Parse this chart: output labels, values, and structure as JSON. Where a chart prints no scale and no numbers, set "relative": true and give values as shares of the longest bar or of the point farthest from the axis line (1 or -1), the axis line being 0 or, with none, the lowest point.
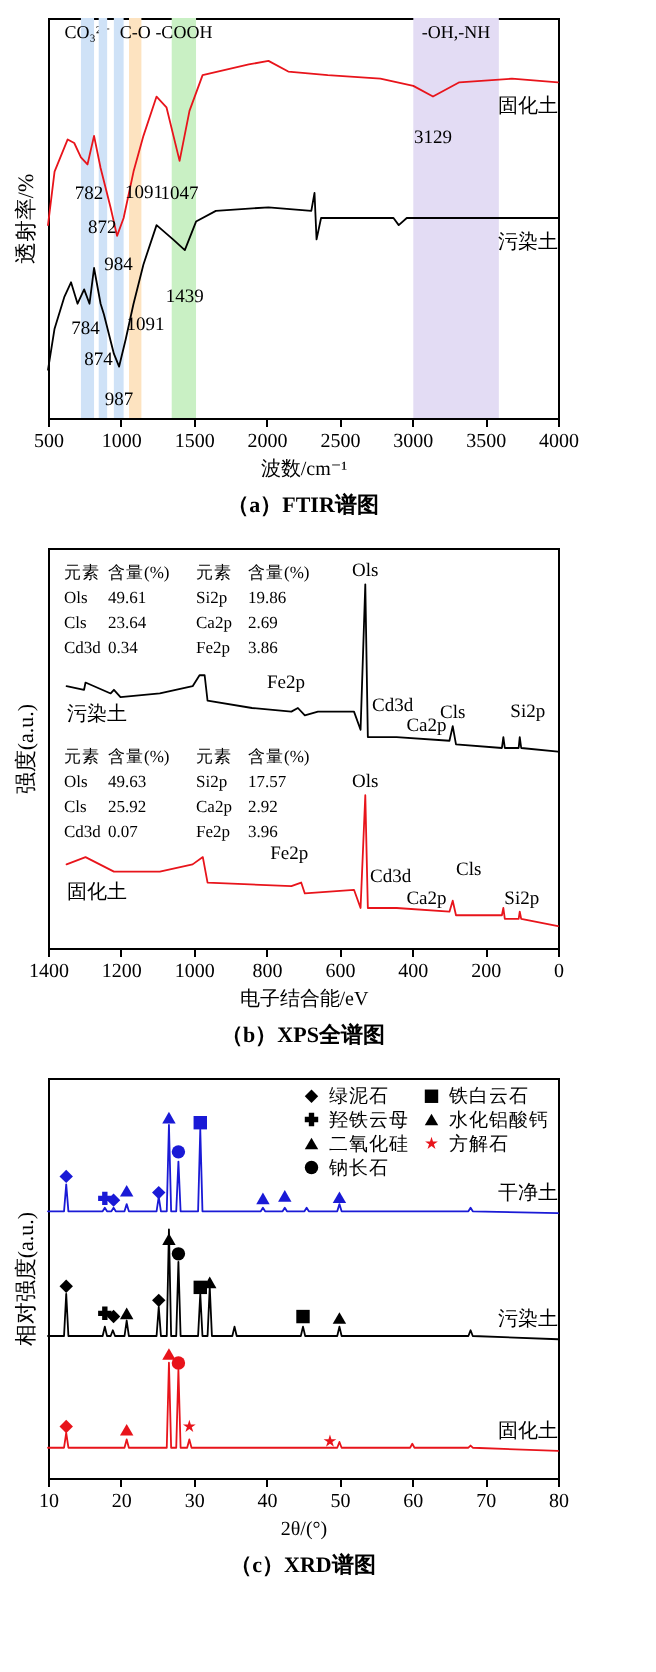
{
  "chart_data": [
    {
      "type": "line",
      "title": "（a）FTIR谱图",
      "xlabel": "波数/cm⁻¹",
      "ylabel": "透射率/%",
      "relative": true,
      "xlim": [
        500,
        4000
      ],
      "xticks": [
        500,
        1000,
        1500,
        2000,
        2500,
        3000,
        3500,
        4000
      ],
      "bands": [
        {
          "axis": "x",
          "from": 726,
          "to": 816,
          "color": "#cfe2f7",
          "label": "CO₃²⁻"
        },
        {
          "axis": "x",
          "from": 848,
          "to": 906,
          "color": "#cfe2f7"
        },
        {
          "axis": "x",
          "from": 952,
          "to": 1019,
          "color": "#cfe2f7"
        },
        {
          "axis": "x",
          "from": 1056,
          "to": 1141,
          "color": "#fde3c0",
          "label": "C-O"
        },
        {
          "axis": "x",
          "from": 1349,
          "to": 1516,
          "color": "#c9f0c4",
          "label": "-COOH"
        },
        {
          "axis": "x",
          "from": 3007,
          "to": 3594,
          "color": "#e3dcf4",
          "label": "-OH,-NH"
        }
      ],
      "series": [
        {
          "name": "固化土",
          "color": "#e8141b",
          "x": [
            500,
            545,
            635,
            680,
            726,
            771,
            816,
            861,
            929,
            974,
            1019,
            1087,
            1155,
            1245,
            1313,
            1403,
            1471,
            1561,
            1878,
            2013,
            2149,
            2420,
            2781,
            3007,
            3142,
            3323,
            3684,
            4000
          ],
          "values": [
            0.54,
            0.69,
            0.78,
            0.77,
            0.73,
            0.71,
            0.79,
            0.7,
            0.59,
            0.51,
            0.56,
            0.69,
            0.79,
            0.9,
            0.87,
            0.72,
            0.86,
            0.96,
            0.99,
            1.0,
            0.97,
            0.96,
            0.95,
            0.93,
            0.9,
            0.94,
            0.95,
            0.94
          ]
        },
        {
          "name": "污染土",
          "color": "#000000",
          "x": [
            500,
            545,
            613,
            658,
            703,
            748,
            785,
            816,
            861,
            884,
            952,
            988,
            1033,
            1087,
            1155,
            1245,
            1358,
            1439,
            1516,
            1652,
            2013,
            2307,
            2329,
            2343,
            2374,
            2871,
            2907,
            2962,
            4000
          ],
          "values": [
            0.135,
            0.25,
            0.34,
            0.38,
            0.32,
            0.36,
            0.32,
            0.42,
            0.32,
            0.29,
            0.18,
            0.144,
            0.22,
            0.32,
            0.43,
            0.54,
            0.5,
            0.47,
            0.55,
            0.58,
            0.59,
            0.58,
            0.63,
            0.5,
            0.56,
            0.56,
            0.54,
            0.56,
            0.56
          ]
        }
      ],
      "annotations": [
        {
          "text": "782",
          "x": 782,
          "y": 0.73
        },
        {
          "text": "872",
          "x": 872,
          "y": 0.68
        },
        {
          "text": "984",
          "x": 984,
          "y": 0.52
        },
        {
          "text": "1091",
          "x": 1091,
          "y": 0.7
        },
        {
          "text": "1047",
          "x": 1403,
          "y": 0.72
        },
        {
          "text": "3129",
          "x": 3142,
          "y": 0.9
        },
        {
          "text": "1439",
          "x": 1439,
          "y": 0.47
        },
        {
          "text": "784",
          "x": 785,
          "y": 0.32
        },
        {
          "text": "874",
          "x": 874,
          "y": 0.31
        },
        {
          "text": "1091",
          "x": 1087,
          "y": 0.32
        },
        {
          "text": "987",
          "x": 988,
          "y": 0.144
        }
      ]
    },
    {
      "type": "line",
      "title": "（b）XPS全谱图",
      "xlabel": "电子结合能/eV",
      "ylabel": "强度(a.u.)",
      "relative": true,
      "xlim": [
        1400,
        0
      ],
      "xticks": [
        1400,
        1200,
        1000,
        800,
        600,
        400,
        200,
        0
      ],
      "series": [
        {
          "name": "污染土",
          "color": "#000000",
          "x": [
            1349,
            1301,
            1297,
            1228,
            1219,
            1201,
            1093,
            1003,
            984,
            970,
            962,
            840,
            732,
            714,
            695,
            659,
            560,
            542,
            529,
            522,
            443,
            298,
            289,
            280,
            154,
            150,
            146,
            108,
            105,
            101,
            0
          ],
          "values": [
            0.72,
            0.71,
            0.73,
            0.7,
            0.71,
            0.69,
            0.7,
            0.72,
            0.75,
            0.75,
            0.68,
            0.66,
            0.65,
            0.66,
            0.64,
            0.65,
            0.65,
            0.6,
            1.0,
            0.58,
            0.58,
            0.57,
            0.61,
            0.56,
            0.55,
            0.58,
            0.55,
            0.55,
            0.58,
            0.55,
            0.54
          ]
        },
        {
          "name": "固化土",
          "color": "#e8141b",
          "x": [
            1349,
            1297,
            1219,
            1093,
            1003,
            975,
            962,
            732,
            705,
            695,
            560,
            542,
            529,
            522,
            443,
            298,
            289,
            280,
            154,
            150,
            146,
            108,
            105,
            101,
            0
          ],
          "values": [
            0.23,
            0.25,
            0.21,
            0.21,
            0.23,
            0.25,
            0.18,
            0.17,
            0.18,
            0.15,
            0.16,
            0.11,
            0.42,
            0.11,
            0.11,
            0.1,
            0.13,
            0.09,
            0.09,
            0.11,
            0.08,
            0.08,
            0.1,
            0.08,
            0.06
          ]
        }
      ],
      "annotations": [
        "元素 含量(%) 元素 含量(%)",
        "Ols 49.61 Si2p 19.86",
        "Cls 23.64 Ca2p 2.69",
        "Cd3d 0.34 Fe2p 3.86",
        "元素 含量(%) 元素 含量(%)",
        "Ols 49.63 Si2p 17.57",
        "Cls 25.92 Ca2p 2.92",
        "Cd3d 0.07 Fe2p 3.96",
        {
          "text": "Ols",
          "x": 529,
          "y": 1.0
        },
        {
          "text": "Fe2p",
          "x": 714,
          "y": 0.66
        },
        {
          "text": "Cd3d",
          "x": 443,
          "y": 0.58
        },
        {
          "text": "Ca2p",
          "x": 361,
          "y": 0.575
        },
        {
          "text": "Cls",
          "x": 289,
          "y": 0.61
        },
        {
          "text": "Si2p",
          "x": 105,
          "y": 0.58
        },
        {
          "text": "Ols",
          "x": 529,
          "y": 0.42
        },
        {
          "text": "Fe2p",
          "x": 705,
          "y": 0.18
        },
        {
          "text": "Cd3d",
          "x": 443,
          "y": 0.11
        },
        {
          "text": "Ca2p",
          "x": 361,
          "y": 0.105
        },
        {
          "text": "Cls",
          "x": 289,
          "y": 0.13
        },
        {
          "text": "Si2p",
          "x": 105,
          "y": 0.1
        }
      ]
    },
    {
      "type": "line",
      "title": "（c）XRD谱图",
      "xlabel": "2θ/(°)",
      "ylabel": "相对强度(a.u.)",
      "relative": true,
      "xlim": [
        10,
        80
      ],
      "xticks": [
        10,
        20,
        30,
        40,
        50,
        60,
        70,
        80
      ],
      "legend": "top right",
      "series": [
        {
          "name": "干净土",
          "color": "#1a1ad6",
          "x": [
            10,
            12.2,
            12.5,
            12.8,
            17.5,
            17.8,
            18.1,
            18.7,
            19,
            19.3,
            20.5,
            20.8,
            21.1,
            24.9,
            25.2,
            25.5,
            26.3,
            26.6,
            26.9,
            27.6,
            27.9,
            28.2,
            30.6,
            30.9,
            31.2,
            39.2,
            39.5,
            39.8,
            42.2,
            42.5,
            42.8,
            45.2,
            45.5,
            45.8,
            49.7,
            50,
            50.3,
            67.7,
            68,
            68.3,
            80
          ],
          "values": [
            0.74,
            0.74,
            0.815,
            0.74,
            0.74,
            0.75,
            0.74,
            0.74,
            0.75,
            0.74,
            0.74,
            0.76,
            0.74,
            0.74,
            0.78,
            0.74,
            0.74,
            0.98,
            0.74,
            0.74,
            0.878,
            0.74,
            0.74,
            0.968,
            0.74,
            0.74,
            0.75,
            0.74,
            0.74,
            0.75,
            0.74,
            0.74,
            0.75,
            0.74,
            0.74,
            0.76,
            0.74,
            0.74,
            0.75,
            0.74,
            0.735
          ]
        },
        {
          "name": "污染土",
          "color": "#000000",
          "x": [
            10,
            12.2,
            12.5,
            12.8,
            17.5,
            17.8,
            18.1,
            18.6,
            18.9,
            19.2,
            20.5,
            20.8,
            21.1,
            24.9,
            25.2,
            25.5,
            26.3,
            26.6,
            26.9,
            27.6,
            27.9,
            28.2,
            30.6,
            30.9,
            31.2,
            31.9,
            32.2,
            32.5,
            35.3,
            35.6,
            35.9,
            44.7,
            45,
            45.3,
            49.7,
            50,
            50.3,
            67.7,
            68,
            68.3,
            80
          ],
          "values": [
            0.394,
            0.394,
            0.511,
            0.394,
            0.394,
            0.42,
            0.394,
            0.394,
            0.41,
            0.394,
            0.394,
            0.437,
            0.394,
            0.394,
            0.475,
            0.394,
            0.394,
            0.69,
            0.394,
            0.394,
            0.6,
            0.394,
            0.394,
            0.511,
            0.394,
            0.394,
            0.53,
            0.394,
            0.394,
            0.42,
            0.394,
            0.394,
            0.42,
            0.394,
            0.394,
            0.42,
            0.394,
            0.394,
            0.41,
            0.394,
            0.385
          ]
        },
        {
          "name": "固化土",
          "color": "#e8141b",
          "x": [
            10,
            12.2,
            12.5,
            12.8,
            20.5,
            20.8,
            21.1,
            26.3,
            26.6,
            26.9,
            27.6,
            27.9,
            28.2,
            29.1,
            29.4,
            29.7,
            49.7,
            50,
            50.3,
            59.7,
            60,
            60.3,
            67.7,
            68,
            68.3,
            80
          ],
          "values": [
            0.084,
            0.084,
            0.125,
            0.084,
            0.084,
            0.107,
            0.084,
            0.084,
            0.32,
            0.084,
            0.084,
            0.3,
            0.084,
            0.084,
            0.107,
            0.084,
            0.084,
            0.1,
            0.084,
            0.084,
            0.095,
            0.084,
            0.084,
            0.09,
            0.084,
            0.075
          ]
        },
        {
          "name": "绿泥石",
          "type": "scatter",
          "marker": "diamond",
          "color": "#000000",
          "x": [
            12.5,
            19,
            25.2,
            12.5,
            19,
            25.2,
            12.5
          ],
          "values": [
            0.837,
            0.771,
            0.792,
            0.532,
            0.448,
            0.493,
            0.143
          ],
          "colors": [
            "#1a1ad6",
            "#1a1ad6",
            "#1a1ad6",
            "#000000",
            "#000000",
            "#000000",
            "#e8141b"
          ]
        },
        {
          "name": "羟铁云母",
          "type": "scatter",
          "marker": "cross",
          "color": "#000000",
          "x": [
            17.8,
            17.8
          ],
          "values": [
            0.776,
            0.457
          ],
          "colors": [
            "#1a1ad6",
            "#000000"
          ]
        },
        {
          "name": "二氧化硅",
          "type": "scatter",
          "marker": "triangle",
          "color": "#000000",
          "x": [
            20.8,
            26.6,
            39.5,
            42.5,
            50,
            20.8,
            26.6,
            32.2,
            50,
            20.8,
            26.6
          ],
          "values": [
            0.797,
            1.0,
            0.776,
            0.783,
            0.779,
            0.457,
            0.663,
            0.543,
            0.444,
            0.134,
            0.344
          ],
          "colors": [
            "#1a1ad6",
            "#1a1ad6",
            "#1a1ad6",
            "#1a1ad6",
            "#1a1ad6",
            "#000000",
            "#000000",
            "#000000",
            "#000000",
            "#e8141b",
            "#e8141b"
          ]
        },
        {
          "name": "钠长石",
          "type": "scatter",
          "marker": "circle",
          "color": "#000000",
          "x": [
            27.9,
            27.9,
            27.9
          ],
          "values": [
            0.905,
            0.622,
            0.319
          ],
          "colors": [
            "#1a1ad6",
            "#000000",
            "#e8141b"
          ]
        },
        {
          "name": "铁白云石",
          "type": "scatter",
          "marker": "square",
          "color": "#000000",
          "x": [
            30.9,
            30.9,
            45
          ],
          "values": [
            0.986,
            0.529,
            0.448
          ],
          "colors": [
            "#1a1ad6",
            "#000000",
            "#000000"
          ]
        },
        {
          "name": "水化铝酸钙",
          "type": "scatter",
          "marker": "triangle",
          "color": "#000000"
        },
        {
          "name": "方解石",
          "type": "scatter",
          "marker": "star",
          "color": "#e8141b",
          "x": [
            29.4,
            48.7
          ],
          "values": [
            0.143,
            0.102
          ],
          "colors": [
            "#e8141b",
            "#e8141b"
          ]
        }
      ]
    }
  ]
}
